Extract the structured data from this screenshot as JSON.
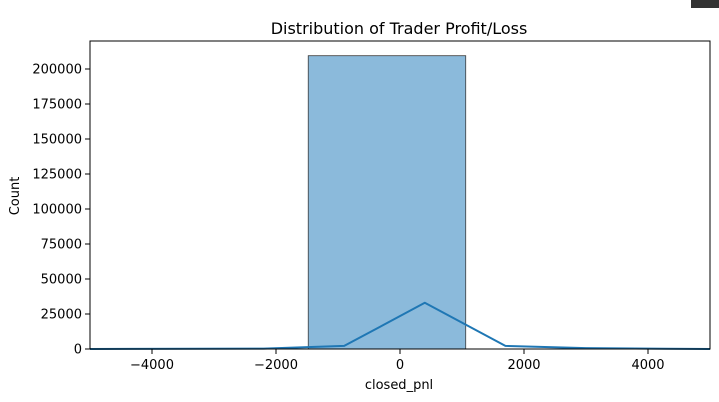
{
  "chart_data": {
    "type": "bar",
    "title": "Distribution of Trader Profit/Loss",
    "xlabel": "closed_pnl",
    "ylabel": "Count",
    "xlim": [
      -5000,
      5000
    ],
    "ylim": [
      0,
      220000
    ],
    "x_ticks": [
      -4000,
      -2000,
      0,
      2000,
      4000
    ],
    "x_tick_labels": [
      "−4000",
      "−2000",
      "0",
      "2000",
      "4000"
    ],
    "y_ticks": [
      0,
      25000,
      50000,
      75000,
      100000,
      125000,
      150000,
      175000,
      200000
    ],
    "y_tick_labels": [
      "0",
      "25000",
      "50000",
      "75000",
      "100000",
      "125000",
      "150000",
      "175000",
      "200000"
    ],
    "grid": false,
    "legend": "none",
    "bars": [
      {
        "x_start": -1480,
        "x_end": 1060,
        "count": 209500
      }
    ],
    "kde_curve": {
      "x": [
        -5000,
        -2200,
        -900,
        400,
        1700,
        3000,
        4300,
        5000
      ],
      "y": [
        0,
        300,
        2200,
        33000,
        2200,
        600,
        200,
        0
      ]
    },
    "colors": {
      "bar_fill": "#8bbadb",
      "bar_edge": "#3a3a3a",
      "kde_line": "#1f77b4"
    }
  }
}
